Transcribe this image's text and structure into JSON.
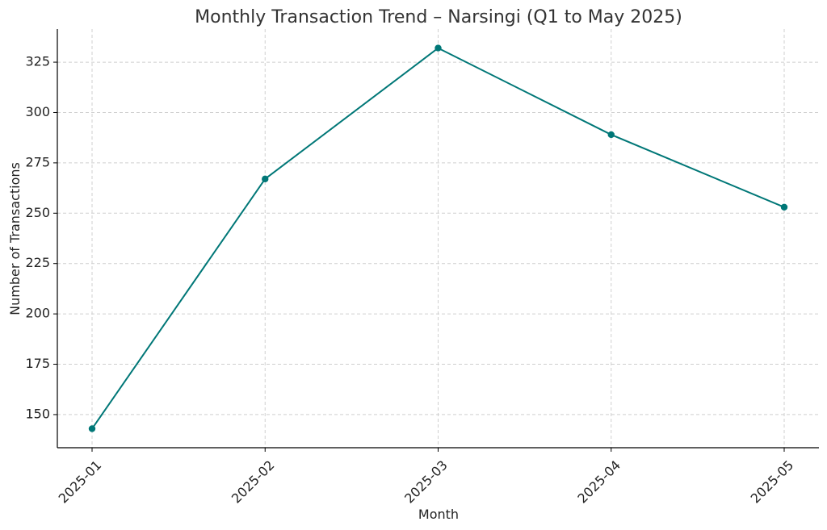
{
  "chart_data": {
    "type": "line",
    "title": "Monthly Transaction Trend – Narsingi (Q1 to May 2025)",
    "xlabel": "Month",
    "ylabel": "Number of Transactions",
    "categories": [
      "2025-01",
      "2025-02",
      "2025-03",
      "2025-04",
      "2025-05"
    ],
    "series": [
      {
        "name": "Transactions",
        "values": [
          143,
          267,
          332,
          289,
          253
        ],
        "color": "#007777"
      }
    ],
    "ylim": [
      133.55,
      341.45
    ],
    "yticks": [
      "150",
      "175",
      "200",
      "225",
      "250",
      "275",
      "300",
      "325"
    ],
    "grid": true,
    "legend": "none"
  }
}
